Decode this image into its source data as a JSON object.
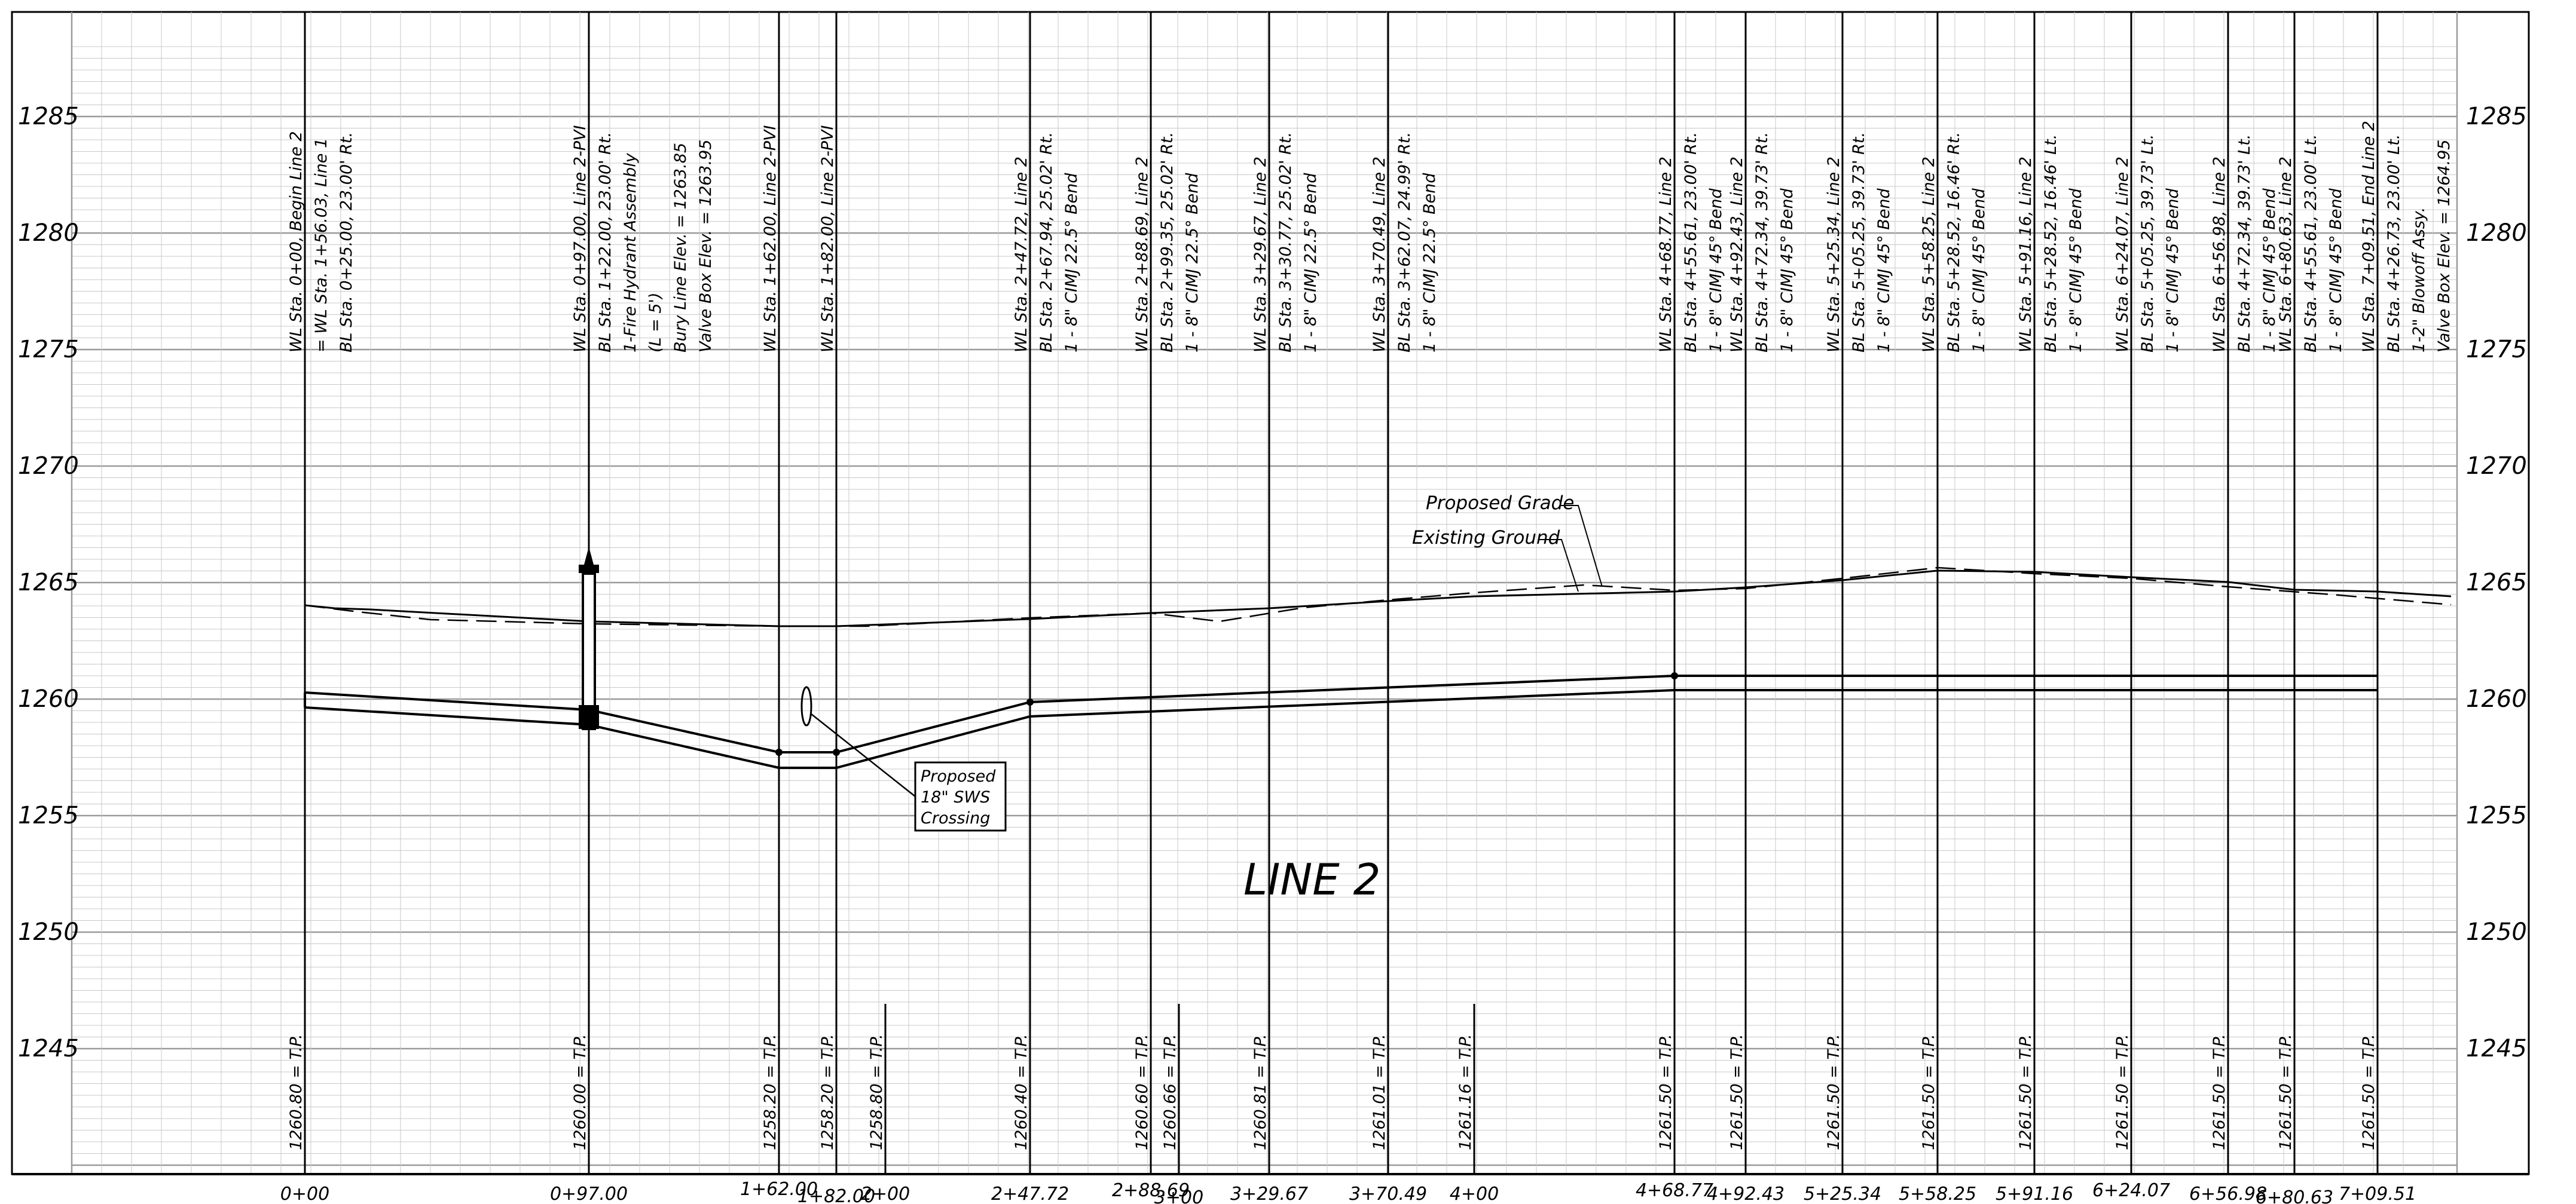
{
  "title": "LINE 2",
  "elevation_labels": [
    "1285",
    "1280",
    "1275",
    "1270",
    "1265",
    "1260",
    "1255",
    "1250",
    "1245"
  ],
  "profile_labels": {
    "proposed_grade": "Proposed Grade",
    "existing_ground": "Existing Ground"
  },
  "sws_crossing": [
    "Proposed",
    "18\" SWS",
    "Crossing"
  ],
  "callouts": [
    {
      "lines": [
        "WL Sta. 0+00, Begin Line 2",
        "= WL Sta. 1+56.03, Line 1",
        "BL Sta. 0+25.00, 23.00' Rt."
      ],
      "tp": "1260.80 = T.P.",
      "station": "0+00"
    },
    {
      "lines": [
        "WL Sta. 0+97.00, Line 2-PVI",
        "BL Sta. 1+22.00, 23.00' Rt.",
        "1-Fire Hydrant Assembly",
        "(L = 5')",
        "Bury Line Elev. = 1263.85",
        "Valve Box Elev. = 1263.95"
      ],
      "tp": "1260.00 = T.P.",
      "station": "0+97.00"
    },
    {
      "lines": [
        "WL Sta. 1+62.00, Line 2-PVI"
      ],
      "tp": "1258.20 = T.P.",
      "station": "1+62.00"
    },
    {
      "lines": [
        "WL Sta. 1+82.00, Line 2-PVI"
      ],
      "tp": "1258.20 = T.P.",
      "station": "1+82.00"
    },
    {
      "lines": [],
      "tp": "1258.80 = T.P.",
      "station": "2+00"
    },
    {
      "lines": [
        "WL Sta. 2+47.72, Line 2",
        "BL Sta. 2+67.94, 25.02' Rt.",
        "1 - 8\" CIMJ 22.5° Bend"
      ],
      "tp": "1260.40 = T.P.",
      "station": "2+47.72"
    },
    {
      "lines": [
        "WL Sta. 2+88.69, Line 2",
        "BL Sta. 2+99.35, 25.02' Rt.",
        "1 - 8\" CIMJ 22.5° Bend"
      ],
      "tp": "1260.60 = T.P.",
      "station": "2+88.69"
    },
    {
      "lines": [],
      "tp": "1260.66 = T.P.",
      "station": "3+00"
    },
    {
      "lines": [
        "WL Sta. 3+29.67, Line 2",
        "BL Sta. 3+30.77, 25.02' Rt.",
        "1 - 8\" CIMJ 22.5° Bend"
      ],
      "tp": "1260.81 = T.P.",
      "station": "3+29.67"
    },
    {
      "lines": [
        "WL Sta. 3+70.49, Line 2",
        "BL Sta. 3+62.07, 24.99' Rt.",
        "1 - 8\" CIMJ 22.5° Bend"
      ],
      "tp": "1261.01 = T.P.",
      "station": "3+70.49"
    },
    {
      "lines": [],
      "tp": "1261.16 = T.P.",
      "station": "4+00"
    },
    {
      "lines": [
        "WL Sta. 4+68.77, Line 2",
        "BL Sta. 4+55.61, 23.00' Rt.",
        "1 - 8\" CIMJ 45° Bend"
      ],
      "tp": "1261.50 = T.P.",
      "station": "4+68.77"
    },
    {
      "lines": [
        "WL Sta. 4+92.43, Line 2",
        "BL Sta. 4+72.34, 39.73' Rt.",
        "1 - 8\" CIMJ 45° Bend"
      ],
      "tp": "1261.50 = T.P.",
      "station": "4+92.43"
    },
    {
      "lines": [
        "WL Sta. 5+25.34, Line 2",
        "BL Sta. 5+05.25, 39.73' Rt.",
        "1 - 8\" CIMJ 45° Bend"
      ],
      "tp": "1261.50 = T.P.",
      "station": "5+25.34"
    },
    {
      "lines": [
        "WL Sta. 5+58.25, Line 2",
        "BL Sta. 5+28.52, 16.46' Rt.",
        "1 - 8\" CIMJ 45° Bend"
      ],
      "tp": "1261.50 = T.P.",
      "station": "5+58.25"
    },
    {
      "lines": [
        "WL Sta. 5+91.16, Line 2",
        "BL Sta. 5+28.52, 16.46' Lt.",
        "1 - 8\" CIMJ 45° Bend"
      ],
      "tp": "1261.50 = T.P.",
      "station": "5+91.16"
    },
    {
      "lines": [
        "WL Sta. 6+24.07, Line 2",
        "BL Sta. 5+05.25, 39.73' Lt.",
        "1 - 8\" CIMJ 45° Bend"
      ],
      "tp": "1261.50 = T.P.",
      "station": "6+24.07"
    },
    {
      "lines": [
        "WL Sta. 6+56.98, Line 2",
        "BL Sta. 4+72.34, 39.73' Lt.",
        "1 - 8\" CIMJ 45° Bend"
      ],
      "tp": "1261.50 = T.P.",
      "station": "6+56.98"
    },
    {
      "lines": [
        "WL Sta. 6+80.63, Line 2",
        "BL Sta. 4+55.61, 23.00' Lt.",
        "1 - 8\" CIMJ 45° Bend"
      ],
      "tp": "1261.50 = T.P.",
      "station": "6+80.63"
    },
    {
      "lines": [
        "WL Sta. 7+09.51, End Line 2",
        "BL Sta. 4+26.73, 23.00' Lt.",
        "1-2\" Blowoff Assy.",
        "Valve Box Elev. = 1264.95"
      ],
      "tp": "1261.50 = T.P.",
      "station": "7+09.51"
    }
  ]
}
